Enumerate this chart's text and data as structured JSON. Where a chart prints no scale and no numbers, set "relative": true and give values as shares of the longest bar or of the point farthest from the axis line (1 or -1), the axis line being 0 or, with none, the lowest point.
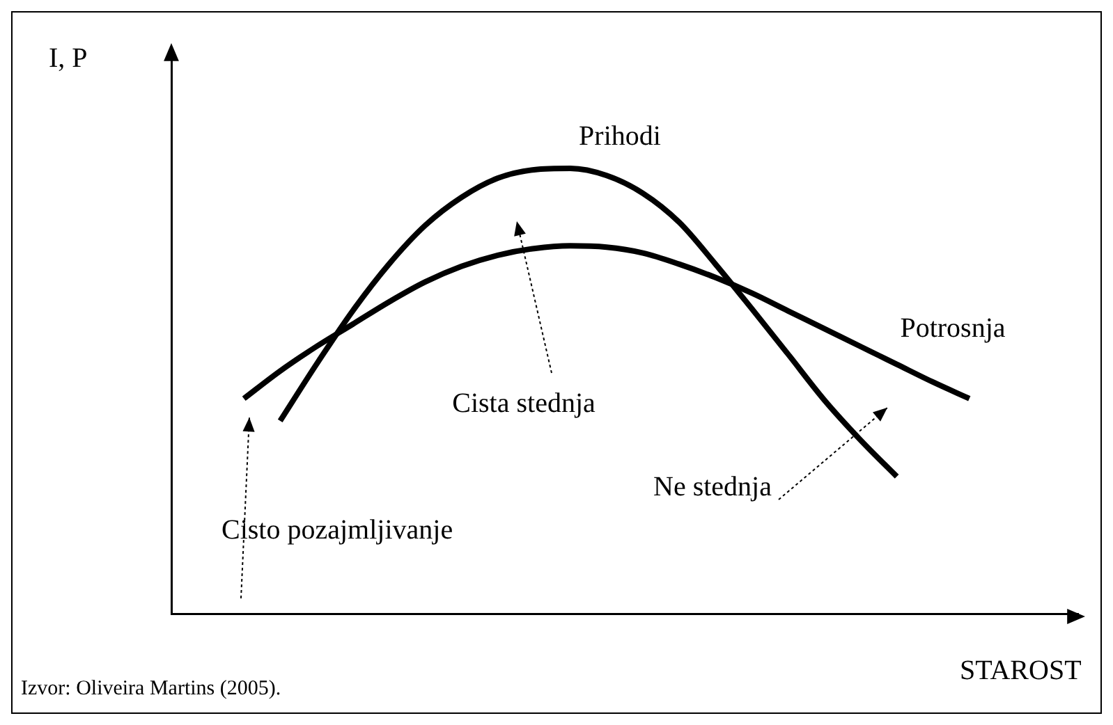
{
  "chart_data": {
    "type": "line",
    "relative": true,
    "xlabel": "STAROST",
    "ylabel": "I, P",
    "marker": "none",
    "line_style": "solid",
    "categories": [
      null,
      null,
      null,
      null,
      null,
      null,
      null,
      null,
      null,
      null,
      null,
      null,
      null,
      null,
      null,
      null,
      null,
      null,
      null,
      null,
      null,
      null,
      null,
      null,
      null,
      null
    ],
    "series": [
      {
        "name": "Prihodi",
        "color": "#000000",
        "values": [
          null,
          null,
          null,
          0.433,
          0.56,
          0.68,
          0.785,
          0.872,
          0.935,
          0.978,
          0.997,
          1.0,
          0.984,
          0.944,
          0.879,
          0.785,
          0.685,
          0.583,
          0.48,
          0.39,
          0.308,
          null,
          null,
          null,
          null,
          null
        ]
      },
      {
        "name": "Potrosnja",
        "color": "#000000",
        "values": [
          null,
          null,
          0.483,
          0.545,
          0.6,
          0.65,
          0.7,
          0.745,
          0.78,
          0.805,
          0.82,
          0.826,
          0.823,
          0.81,
          0.785,
          0.755,
          0.72,
          0.68,
          0.64,
          0.6,
          0.56,
          0.52,
          0.483,
          null,
          null,
          null
        ]
      }
    ],
    "annotations": [
      "Cista stednja",
      "Ne stednja",
      "Cisto pozajmljivanje",
      "Izvor: Oliveira Martins (2005)."
    ]
  }
}
